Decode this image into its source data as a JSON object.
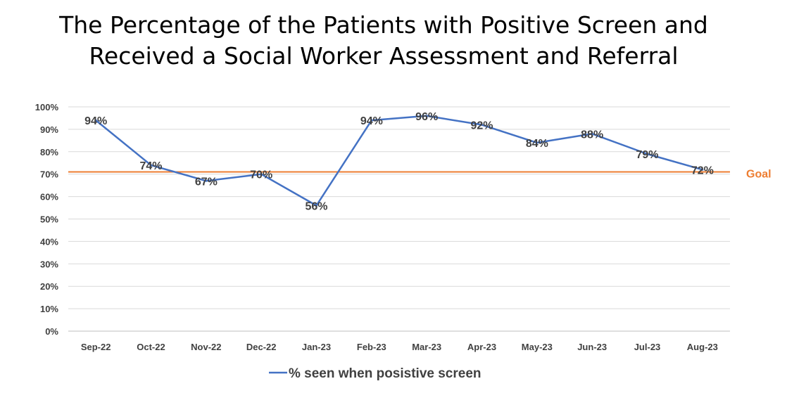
{
  "chart_data": {
    "type": "line",
    "title_line1": "The Percentage of the Patients with Positive Screen and",
    "title_line2": "Received a Social Worker Assessment and Referral",
    "categories": [
      "Sep-22",
      "Oct-22",
      "Nov-22",
      "Dec-22",
      "Jan-23",
      "Feb-23",
      "Mar-23",
      "Apr-23",
      "May-23",
      "Jun-23",
      "Jul-23",
      "Aug-23"
    ],
    "series": [
      {
        "name": "% seen when posistive screen",
        "values": [
          94,
          74,
          67,
          70,
          56,
          94,
          96,
          92,
          84,
          88,
          79,
          72
        ],
        "labels": [
          "94%",
          "74%",
          "67%",
          "70%",
          "56%",
          "94%",
          "96%",
          "92%",
          "84%",
          "88%",
          "79%",
          "72%"
        ],
        "color": "#4472C4"
      }
    ],
    "goal": {
      "label": "Goal",
      "value": 71,
      "color": "#ED7D31"
    },
    "y_ticks": [
      "0%",
      "10%",
      "20%",
      "30%",
      "40%",
      "50%",
      "60%",
      "70%",
      "80%",
      "90%",
      "100%"
    ],
    "ylim": [
      0,
      100
    ],
    "grid": true,
    "legend_position": "bottom"
  }
}
